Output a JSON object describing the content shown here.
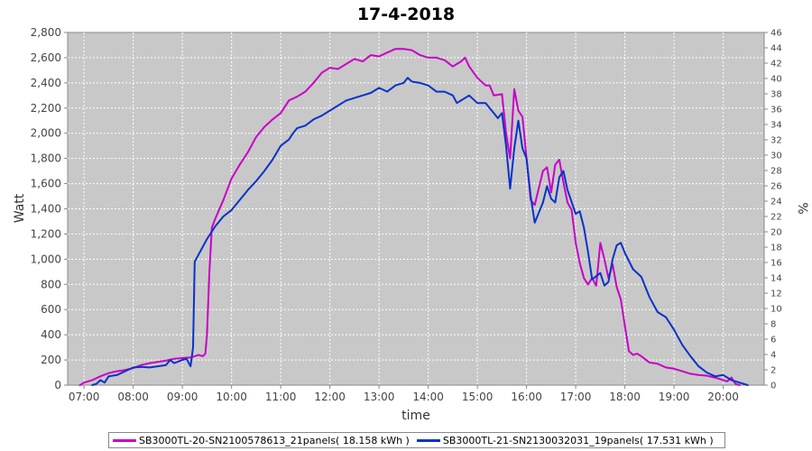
{
  "chart_data": {
    "type": "line",
    "title": "17-4-2018",
    "xlabel": "time",
    "ylabel": "Watt",
    "y2label": "%",
    "ylim": [
      0,
      2800
    ],
    "y2lim": [
      0,
      46
    ],
    "xlim": [
      "06:40",
      "20:50"
    ],
    "grid": true,
    "legend_position": "bottom",
    "x_ticks": [
      "07:00",
      "08:00",
      "09:00",
      "10:00",
      "11:00",
      "12:00",
      "13:00",
      "14:00",
      "15:00",
      "16:00",
      "17:00",
      "18:00",
      "19:00",
      "20:00"
    ],
    "y_ticks": [
      "0",
      "200",
      "400",
      "600",
      "800",
      "1,000",
      "1,200",
      "1,400",
      "1,600",
      "1,800",
      "2,000",
      "2,200",
      "2,400",
      "2,600",
      "2,800"
    ],
    "y2_ticks": [
      "0",
      "2",
      "4",
      "6",
      "8",
      "10",
      "12",
      "14",
      "16",
      "18",
      "20",
      "22",
      "24",
      "26",
      "28",
      "30",
      "32",
      "34",
      "36",
      "38",
      "40",
      "42",
      "44",
      "46"
    ],
    "series": [
      {
        "name": "SB3000TL-20-SN2100578613_21panels( 18.158 kWh )",
        "color": "#c800c8",
        "points": [
          [
            "06:55",
            0
          ],
          [
            "07:00",
            20
          ],
          [
            "07:10",
            40
          ],
          [
            "07:20",
            70
          ],
          [
            "07:30",
            95
          ],
          [
            "07:40",
            110
          ],
          [
            "07:50",
            120
          ],
          [
            "08:00",
            135
          ],
          [
            "08:10",
            160
          ],
          [
            "08:20",
            175
          ],
          [
            "08:30",
            185
          ],
          [
            "08:40",
            195
          ],
          [
            "08:50",
            210
          ],
          [
            "09:00",
            215
          ],
          [
            "09:10",
            220
          ],
          [
            "09:15",
            230
          ],
          [
            "09:20",
            240
          ],
          [
            "09:25",
            230
          ],
          [
            "09:28",
            250
          ],
          [
            "09:30",
            400
          ],
          [
            "09:33",
            900
          ],
          [
            "09:36",
            1250
          ],
          [
            "09:40",
            1320
          ],
          [
            "09:50",
            1470
          ],
          [
            "10:00",
            1640
          ],
          [
            "10:10",
            1750
          ],
          [
            "10:20",
            1850
          ],
          [
            "10:30",
            1970
          ],
          [
            "10:40",
            2050
          ],
          [
            "10:50",
            2110
          ],
          [
            "11:00",
            2160
          ],
          [
            "11:10",
            2260
          ],
          [
            "11:20",
            2290
          ],
          [
            "11:30",
            2330
          ],
          [
            "11:40",
            2400
          ],
          [
            "11:50",
            2480
          ],
          [
            "12:00",
            2520
          ],
          [
            "12:10",
            2510
          ],
          [
            "12:20",
            2550
          ],
          [
            "12:30",
            2590
          ],
          [
            "12:40",
            2570
          ],
          [
            "12:50",
            2620
          ],
          [
            "13:00",
            2610
          ],
          [
            "13:10",
            2640
          ],
          [
            "13:20",
            2670
          ],
          [
            "13:30",
            2670
          ],
          [
            "13:40",
            2660
          ],
          [
            "13:50",
            2620
          ],
          [
            "14:00",
            2600
          ],
          [
            "14:10",
            2600
          ],
          [
            "14:20",
            2580
          ],
          [
            "14:30",
            2530
          ],
          [
            "14:40",
            2570
          ],
          [
            "14:45",
            2600
          ],
          [
            "14:50",
            2530
          ],
          [
            "15:00",
            2440
          ],
          [
            "15:10",
            2380
          ],
          [
            "15:15",
            2380
          ],
          [
            "15:20",
            2300
          ],
          [
            "15:30",
            2310
          ],
          [
            "15:35",
            2000
          ],
          [
            "15:40",
            1800
          ],
          [
            "15:45",
            2350
          ],
          [
            "15:50",
            2180
          ],
          [
            "15:55",
            2130
          ],
          [
            "16:00",
            1800
          ],
          [
            "16:05",
            1470
          ],
          [
            "16:10",
            1430
          ],
          [
            "16:20",
            1700
          ],
          [
            "16:25",
            1730
          ],
          [
            "16:30",
            1530
          ],
          [
            "16:35",
            1750
          ],
          [
            "16:40",
            1790
          ],
          [
            "16:45",
            1610
          ],
          [
            "16:50",
            1450
          ],
          [
            "16:55",
            1390
          ],
          [
            "17:00",
            1130
          ],
          [
            "17:05",
            970
          ],
          [
            "17:10",
            850
          ],
          [
            "17:15",
            800
          ],
          [
            "17:20",
            850
          ],
          [
            "17:25",
            790
          ],
          [
            "17:30",
            1130
          ],
          [
            "17:35",
            1000
          ],
          [
            "17:40",
            850
          ],
          [
            "17:45",
            960
          ],
          [
            "17:50",
            780
          ],
          [
            "17:55",
            680
          ],
          [
            "18:00",
            470
          ],
          [
            "18:05",
            270
          ],
          [
            "18:10",
            240
          ],
          [
            "18:15",
            250
          ],
          [
            "18:20",
            230
          ],
          [
            "18:30",
            180
          ],
          [
            "18:40",
            170
          ],
          [
            "18:50",
            140
          ],
          [
            "19:00",
            130
          ],
          [
            "19:10",
            110
          ],
          [
            "19:20",
            90
          ],
          [
            "19:30",
            80
          ],
          [
            "19:40",
            75
          ],
          [
            "19:50",
            60
          ],
          [
            "20:00",
            40
          ],
          [
            "20:05",
            30
          ],
          [
            "20:10",
            60
          ],
          [
            "20:15",
            10
          ],
          [
            "20:20",
            0
          ]
        ]
      },
      {
        "name": "SB3000TL-21-SN2130032031_19panels( 17.531 kWh )",
        "color": "#0a32c8",
        "points": [
          [
            "07:10",
            0
          ],
          [
            "07:15",
            10
          ],
          [
            "07:20",
            40
          ],
          [
            "07:25",
            20
          ],
          [
            "07:30",
            70
          ],
          [
            "07:40",
            80
          ],
          [
            "07:50",
            110
          ],
          [
            "08:00",
            140
          ],
          [
            "08:10",
            145
          ],
          [
            "08:20",
            140
          ],
          [
            "08:30",
            150
          ],
          [
            "08:40",
            160
          ],
          [
            "08:45",
            200
          ],
          [
            "08:50",
            175
          ],
          [
            "09:00",
            200
          ],
          [
            "09:05",
            210
          ],
          [
            "09:10",
            150
          ],
          [
            "09:13",
            300
          ],
          [
            "09:15",
            980
          ],
          [
            "09:20",
            1040
          ],
          [
            "09:25",
            1100
          ],
          [
            "09:30",
            1160
          ],
          [
            "09:40",
            1260
          ],
          [
            "09:50",
            1340
          ],
          [
            "10:00",
            1390
          ],
          [
            "10:10",
            1470
          ],
          [
            "10:20",
            1550
          ],
          [
            "10:30",
            1620
          ],
          [
            "10:40",
            1700
          ],
          [
            "10:50",
            1790
          ],
          [
            "11:00",
            1900
          ],
          [
            "11:10",
            1950
          ],
          [
            "11:15",
            2000
          ],
          [
            "11:20",
            2040
          ],
          [
            "11:30",
            2060
          ],
          [
            "11:40",
            2110
          ],
          [
            "11:50",
            2140
          ],
          [
            "12:00",
            2180
          ],
          [
            "12:10",
            2220
          ],
          [
            "12:20",
            2260
          ],
          [
            "12:30",
            2280
          ],
          [
            "12:40",
            2300
          ],
          [
            "12:50",
            2320
          ],
          [
            "13:00",
            2360
          ],
          [
            "13:10",
            2330
          ],
          [
            "13:20",
            2380
          ],
          [
            "13:30",
            2400
          ],
          [
            "13:35",
            2440
          ],
          [
            "13:40",
            2410
          ],
          [
            "13:50",
            2400
          ],
          [
            "14:00",
            2380
          ],
          [
            "14:10",
            2330
          ],
          [
            "14:20",
            2330
          ],
          [
            "14:30",
            2300
          ],
          [
            "14:35",
            2240
          ],
          [
            "14:40",
            2260
          ],
          [
            "14:50",
            2300
          ],
          [
            "15:00",
            2240
          ],
          [
            "15:10",
            2240
          ],
          [
            "15:20",
            2160
          ],
          [
            "15:25",
            2120
          ],
          [
            "15:30",
            2160
          ],
          [
            "15:35",
            1900
          ],
          [
            "15:40",
            1560
          ],
          [
            "15:45",
            1880
          ],
          [
            "15:50",
            2100
          ],
          [
            "15:55",
            1880
          ],
          [
            "16:00",
            1800
          ],
          [
            "16:05",
            1500
          ],
          [
            "16:10",
            1290
          ],
          [
            "16:20",
            1450
          ],
          [
            "16:25",
            1580
          ],
          [
            "16:30",
            1480
          ],
          [
            "16:35",
            1450
          ],
          [
            "16:40",
            1650
          ],
          [
            "16:45",
            1700
          ],
          [
            "16:50",
            1550
          ],
          [
            "17:00",
            1360
          ],
          [
            "17:05",
            1380
          ],
          [
            "17:10",
            1250
          ],
          [
            "17:15",
            1060
          ],
          [
            "17:20",
            840
          ],
          [
            "17:30",
            890
          ],
          [
            "17:35",
            790
          ],
          [
            "17:40",
            820
          ],
          [
            "17:45",
            1000
          ],
          [
            "17:50",
            1110
          ],
          [
            "17:55",
            1130
          ],
          [
            "18:00",
            1050
          ],
          [
            "18:10",
            920
          ],
          [
            "18:20",
            860
          ],
          [
            "18:30",
            700
          ],
          [
            "18:40",
            580
          ],
          [
            "18:50",
            540
          ],
          [
            "19:00",
            440
          ],
          [
            "19:10",
            320
          ],
          [
            "19:20",
            230
          ],
          [
            "19:30",
            150
          ],
          [
            "19:40",
            100
          ],
          [
            "19:50",
            70
          ],
          [
            "20:00",
            80
          ],
          [
            "20:10",
            40
          ],
          [
            "20:20",
            20
          ],
          [
            "20:30",
            0
          ]
        ]
      }
    ]
  }
}
